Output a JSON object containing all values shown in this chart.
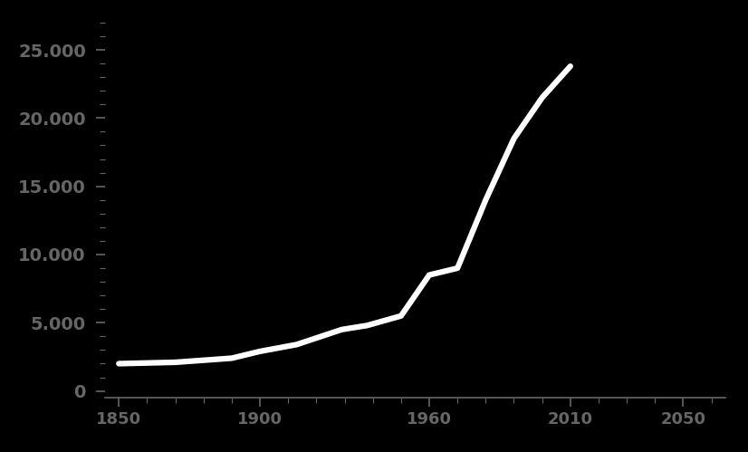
{
  "x": [
    1850,
    1870,
    1890,
    1900,
    1913,
    1929,
    1938,
    1950,
    1960,
    1970,
    1980,
    1990,
    2000,
    2010
  ],
  "y": [
    2000,
    2100,
    2400,
    2900,
    3400,
    4500,
    4800,
    5500,
    8500,
    9000,
    14000,
    18500,
    21500,
    23800
  ],
  "line_color": "#ffffff",
  "line_width": 4.5,
  "background_color": "#000000",
  "text_color": "#ffffff",
  "tick_color": "#666666",
  "xlim": [
    1845,
    2065
  ],
  "ylim": [
    -500,
    27000
  ],
  "xticks": [
    1850,
    1900,
    1960,
    2010,
    2050
  ],
  "yticks": [
    0,
    5000,
    10000,
    15000,
    20000,
    25000
  ],
  "ytick_labels": [
    "0",
    "5.000",
    "10.000",
    "15.000",
    "20.000",
    "25.000"
  ],
  "minor_xtick_interval": 10,
  "minor_ytick_interval": 1000,
  "figsize": [
    8.26,
    4.99
  ],
  "dpi": 100
}
